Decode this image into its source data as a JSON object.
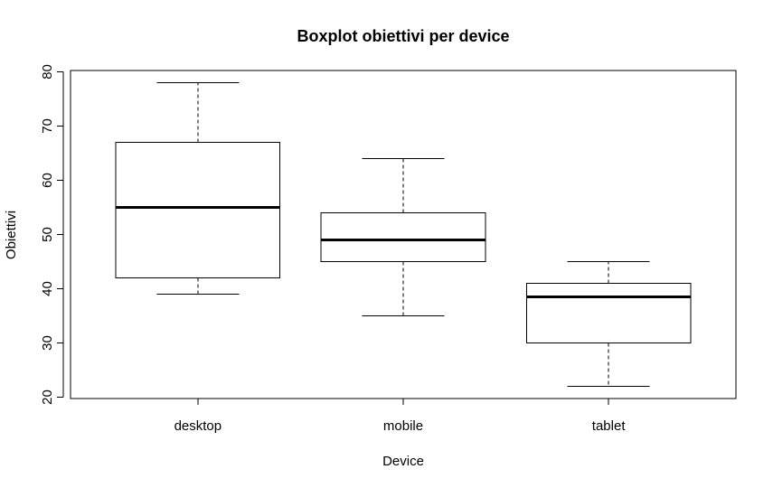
{
  "chart_data": {
    "type": "box",
    "title": "Boxplot obiettivi per device",
    "x_label": "Device",
    "y_label": "Obiettivi",
    "categories": [
      "desktop",
      "mobile",
      "tablet"
    ],
    "boxes": [
      {
        "min": 39,
        "q1": 42,
        "median": 55,
        "q3": 67,
        "max": 78
      },
      {
        "min": 35,
        "q1": 45,
        "median": 49,
        "q3": 54,
        "max": 64
      },
      {
        "min": 22,
        "q1": 30,
        "median": 38.5,
        "q3": 41,
        "max": 45
      }
    ],
    "color": "#ffffff",
    "ylim": [
      19.76,
      80.24
    ],
    "yticks": [
      20,
      30,
      40,
      50,
      60,
      70,
      80
    ]
  }
}
